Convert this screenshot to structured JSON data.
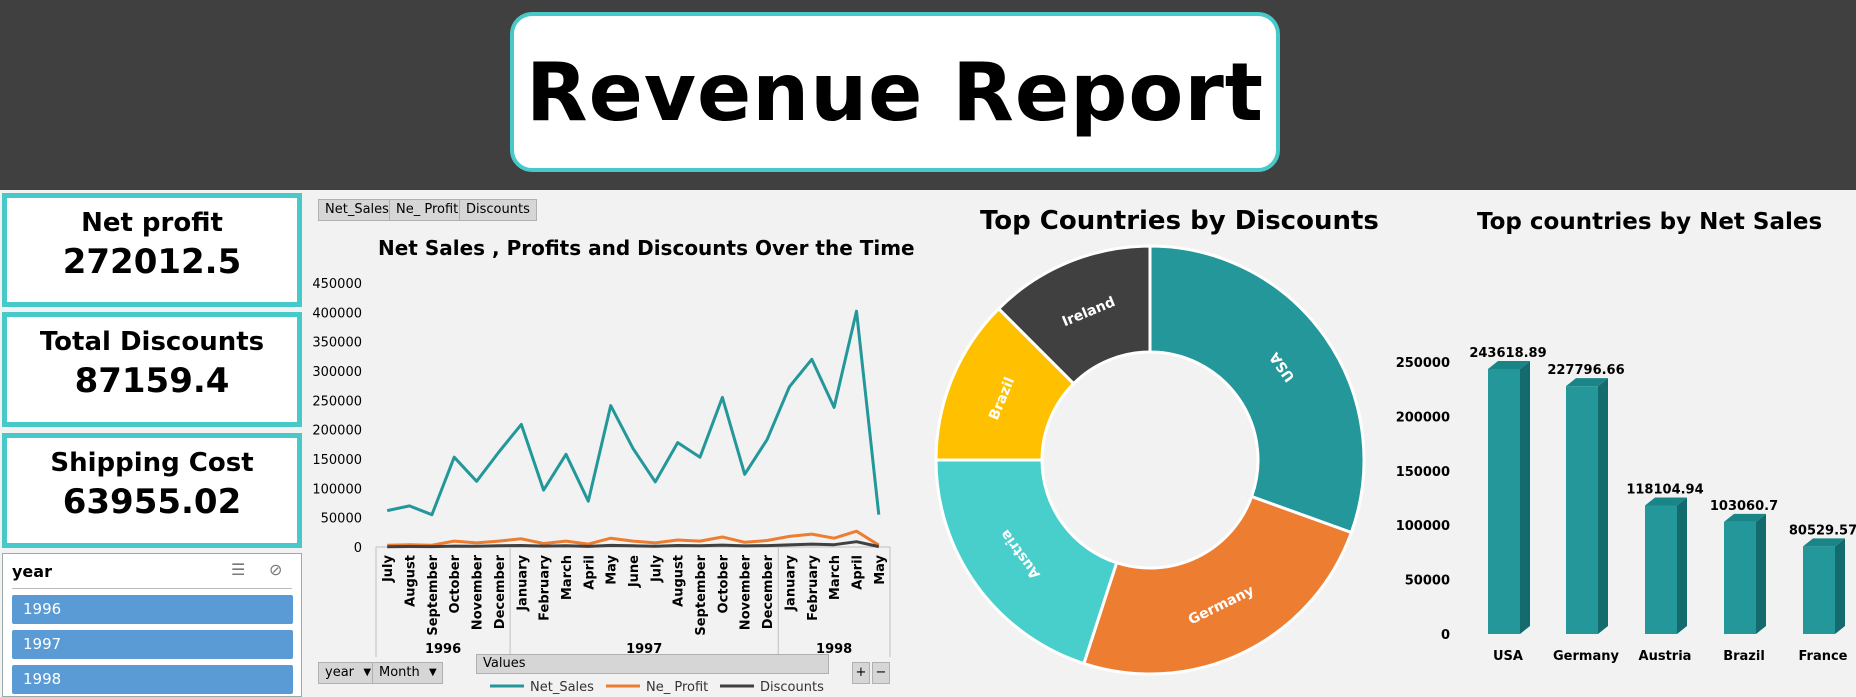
{
  "header": {
    "title": "Revenue Report"
  },
  "kpis": [
    {
      "label": "Net profit",
      "value": "272012.5"
    },
    {
      "label": "Total Discounts",
      "value": "87159.4"
    },
    {
      "label": "Shipping Cost",
      "value": "63955.02"
    }
  ],
  "slicer": {
    "title": "year",
    "items": [
      "1996",
      "1997",
      "1998"
    ]
  },
  "pivot_buttons": {
    "top": [
      "Net_Sales",
      "Ne_ Profit",
      "Discounts"
    ],
    "bottom": [
      "year",
      "Month"
    ],
    "values_label": "Values"
  },
  "colors": {
    "net_sales": "#23979a",
    "profit": "#ed7d31",
    "discounts": "#404040",
    "usa": "#23979a",
    "germany": "#ed7d31",
    "austria": "#48cfcc",
    "brazil": "#ffc000",
    "ireland": "#404040",
    "bars": "#23979a"
  },
  "chart_data": [
    {
      "type": "line",
      "title": "Net Sales , Profits and Discounts Over the Time",
      "ylim": [
        0,
        450000
      ],
      "y_ticks": [
        "450000",
        "400000",
        "350000",
        "300000",
        "250000",
        "200000",
        "150000",
        "100000",
        "50000",
        "0"
      ],
      "categories": [
        "July",
        "August",
        "September",
        "October",
        "November",
        "December",
        "January",
        "February",
        "March",
        "April",
        "May",
        "June",
        "July",
        "August",
        "September",
        "October",
        "November",
        "December",
        "January",
        "February",
        "March",
        "April",
        "May"
      ],
      "year_groups": [
        {
          "year": "1996",
          "count": 6
        },
        {
          "year": "1997",
          "count": 12
        },
        {
          "year": "1998",
          "count": 5
        }
      ],
      "series": [
        {
          "name": "Net_Sales",
          "values": [
            62000,
            70000,
            55000,
            153000,
            112000,
            162000,
            209000,
            97000,
            158000,
            78000,
            241000,
            168000,
            111000,
            178000,
            153000,
            255000,
            124000,
            183000,
            273000,
            320000,
            238000,
            402000,
            55000
          ]
        },
        {
          "name": "Ne_ Profit",
          "values": [
            3000,
            4000,
            3000,
            10000,
            7000,
            10000,
            14000,
            6000,
            10000,
            5000,
            15000,
            10000,
            7000,
            12000,
            10000,
            17000,
            8000,
            11000,
            18000,
            22000,
            15000,
            27000,
            3000
          ]
        },
        {
          "name": "Discounts",
          "values": [
            500,
            800,
            600,
            1500,
            1200,
            2000,
            2500,
            1500,
            2200,
            1000,
            2800,
            2000,
            1300,
            2500,
            2000,
            3200,
            1800,
            2400,
            3500,
            5000,
            4000,
            9000,
            700
          ]
        }
      ],
      "legend": "bottom"
    },
    {
      "type": "pie",
      "title": "Top Countries by Discounts",
      "labels": [
        "USA",
        "Germany",
        "Austria",
        "Brazil",
        "Ireland"
      ],
      "values": [
        30.5,
        24.5,
        20.0,
        12.5,
        12.5
      ]
    },
    {
      "type": "bar",
      "title": "Top countries by Net Sales",
      "categories": [
        "USA",
        "Germany",
        "Austria",
        "Brazil",
        "France"
      ],
      "values": [
        243618.89,
        227796.66,
        118104.94,
        103060.7,
        80529.57
      ],
      "value_labels": [
        "243618.89",
        "227796.66",
        "118104.94",
        "103060.7",
        "80529.57"
      ],
      "ylim": [
        0,
        250000
      ],
      "y_ticks": [
        "250000",
        "200000",
        "150000",
        "100000",
        "50000",
        "0"
      ]
    }
  ]
}
